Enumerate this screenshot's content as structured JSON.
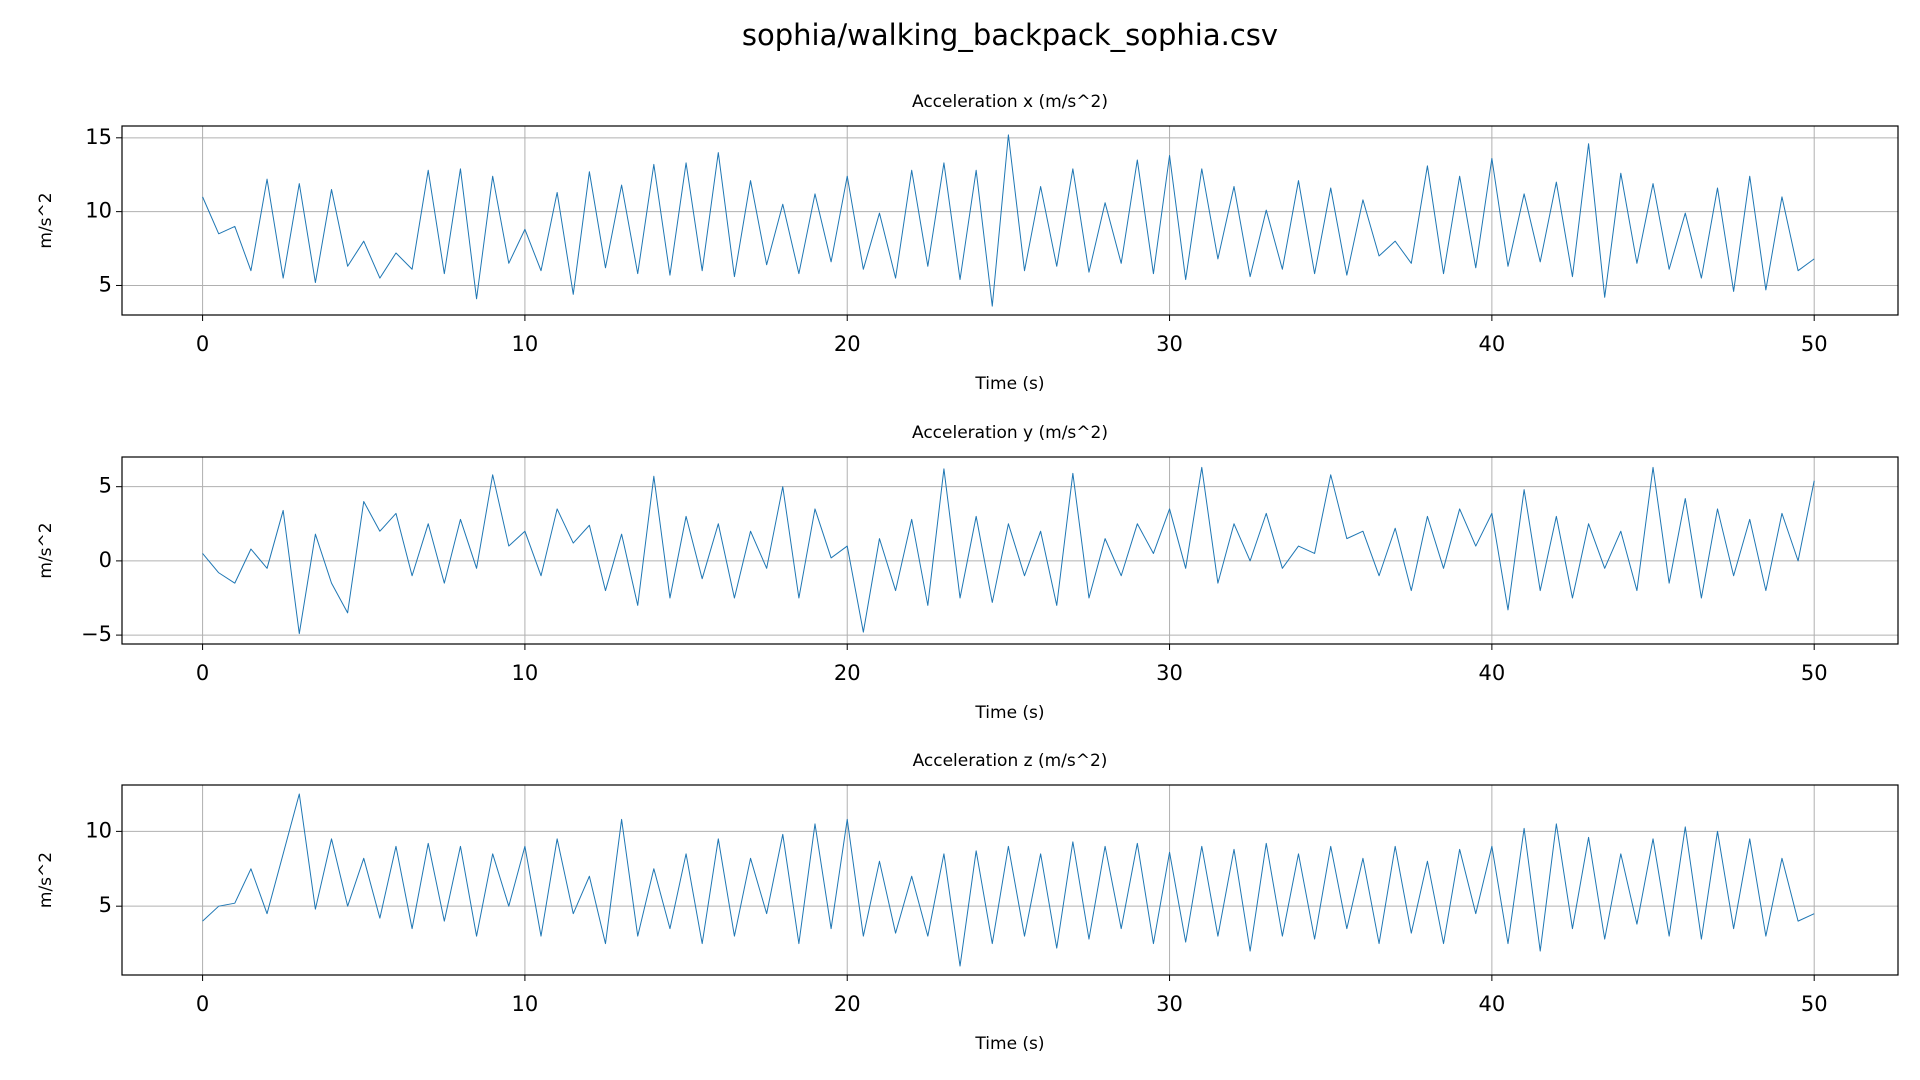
{
  "title": "sophia/walking_backpack_sophia.csv",
  "chart_data": [
    {
      "type": "line",
      "title": "Acceleration x (m/s^2)",
      "x_label": "Time (s)",
      "y_label": "m/s^2",
      "color": "#1f77b4",
      "grid": true,
      "xlim": [
        -2.5,
        52.6
      ],
      "xticks": [
        0,
        10,
        20,
        30,
        40,
        50
      ],
      "ylim": [
        3.0,
        15.8
      ],
      "yticks": [
        5,
        10,
        15
      ],
      "x": [
        0,
        0.5,
        1,
        1.5,
        2,
        2.5,
        3,
        3.5,
        4,
        4.5,
        5,
        5.5,
        6,
        6.5,
        7,
        7.5,
        8,
        8.5,
        9,
        9.5,
        10,
        10.5,
        11,
        11.5,
        12,
        12.5,
        13,
        13.5,
        14,
        14.5,
        15,
        15.5,
        16,
        16.5,
        17,
        17.5,
        18,
        18.5,
        19,
        19.5,
        20,
        20.5,
        21,
        21.5,
        22,
        22.5,
        23,
        23.5,
        24,
        24.5,
        25,
        25.5,
        26,
        26.5,
        27,
        27.5,
        28,
        28.5,
        29,
        29.5,
        30,
        30.5,
        31,
        31.5,
        32,
        32.5,
        33,
        33.5,
        34,
        34.5,
        35,
        35.5,
        36,
        36.5,
        37,
        37.5,
        38,
        38.5,
        39,
        39.5,
        40,
        40.5,
        41,
        41.5,
        42,
        42.5,
        43,
        43.5,
        44,
        44.5,
        45,
        45.5,
        46,
        46.5,
        47,
        47.5,
        48,
        48.5,
        49,
        49.5,
        50
      ],
      "values": [
        11.0,
        8.5,
        9.0,
        6.0,
        12.2,
        5.5,
        11.9,
        5.2,
        11.5,
        6.3,
        8.0,
        5.5,
        7.2,
        6.1,
        12.8,
        5.8,
        12.9,
        4.1,
        12.4,
        6.5,
        8.8,
        6.0,
        11.3,
        4.4,
        12.7,
        6.2,
        11.8,
        5.8,
        13.2,
        5.7,
        13.3,
        6.0,
        14.0,
        5.6,
        12.1,
        6.4,
        10.5,
        5.8,
        11.2,
        6.6,
        12.4,
        6.1,
        9.9,
        5.5,
        12.8,
        6.3,
        13.3,
        5.4,
        12.8,
        3.6,
        15.2,
        6.0,
        11.7,
        6.3,
        12.9,
        5.9,
        10.6,
        6.5,
        13.5,
        5.8,
        13.8,
        5.4,
        12.9,
        6.8,
        11.7,
        5.6,
        10.1,
        6.1,
        12.1,
        5.8,
        11.6,
        5.7,
        10.8,
        7.0,
        8.0,
        6.5,
        13.1,
        5.8,
        12.4,
        6.2,
        13.6,
        6.3,
        11.2,
        6.6,
        12.0,
        5.6,
        14.6,
        4.2,
        12.6,
        6.5,
        11.9,
        6.1,
        9.9,
        5.5,
        11.6,
        4.6,
        12.4,
        4.7,
        11.0,
        6.0,
        6.8
      ]
    },
    {
      "type": "line",
      "title": "Acceleration y (m/s^2)",
      "x_label": "Time (s)",
      "y_label": "m/s^2",
      "color": "#1f77b4",
      "grid": true,
      "xlim": [
        -2.5,
        52.6
      ],
      "xticks": [
        0,
        10,
        20,
        30,
        40,
        50
      ],
      "ylim": [
        -5.6,
        7.0
      ],
      "yticks": [
        {
          "value": -5,
          "label": "−5"
        },
        0,
        5
      ],
      "x": [
        0,
        0.5,
        1,
        1.5,
        2,
        2.5,
        3,
        3.5,
        4,
        4.5,
        5,
        5.5,
        6,
        6.5,
        7,
        7.5,
        8,
        8.5,
        9,
        9.5,
        10,
        10.5,
        11,
        11.5,
        12,
        12.5,
        13,
        13.5,
        14,
        14.5,
        15,
        15.5,
        16,
        16.5,
        17,
        17.5,
        18,
        18.5,
        19,
        19.5,
        20,
        20.5,
        21,
        21.5,
        22,
        22.5,
        23,
        23.5,
        24,
        24.5,
        25,
        25.5,
        26,
        26.5,
        27,
        27.5,
        28,
        28.5,
        29,
        29.5,
        30,
        30.5,
        31,
        31.5,
        32,
        32.5,
        33,
        33.5,
        34,
        34.5,
        35,
        35.5,
        36,
        36.5,
        37,
        37.5,
        38,
        38.5,
        39,
        39.5,
        40,
        40.5,
        41,
        41.5,
        42,
        42.5,
        43,
        43.5,
        44,
        44.5,
        45,
        45.5,
        46,
        46.5,
        47,
        47.5,
        48,
        48.5,
        49,
        49.5,
        50
      ],
      "values": [
        0.5,
        -0.8,
        -1.5,
        0.8,
        -0.5,
        3.4,
        -4.9,
        1.8,
        -1.5,
        -3.5,
        4.0,
        2.0,
        3.2,
        -1.0,
        2.5,
        -1.5,
        2.8,
        -0.5,
        5.8,
        1.0,
        2.0,
        -1.0,
        3.5,
        1.2,
        2.4,
        -2.0,
        1.8,
        -3.0,
        5.7,
        -2.5,
        3.0,
        -1.2,
        2.5,
        -2.5,
        2.0,
        -0.5,
        5.0,
        -2.5,
        3.5,
        0.2,
        1.0,
        -4.8,
        1.5,
        -2.0,
        2.8,
        -3.0,
        6.2,
        -2.5,
        3.0,
        -2.8,
        2.5,
        -1.0,
        2.0,
        -3.0,
        5.9,
        -2.5,
        1.5,
        -1.0,
        2.5,
        0.5,
        3.5,
        -0.5,
        6.3,
        -1.5,
        2.5,
        0.0,
        3.2,
        -0.5,
        1.0,
        0.5,
        5.8,
        1.5,
        2.0,
        -1.0,
        2.2,
        -2.0,
        3.0,
        -0.5,
        3.5,
        1.0,
        3.2,
        -3.3,
        4.8,
        -2.0,
        3.0,
        -2.5,
        2.5,
        -0.5,
        2.0,
        -2.0,
        6.3,
        -1.5,
        4.2,
        -2.5,
        3.5,
        -1.0,
        2.8,
        -2.0,
        3.2,
        0.0,
        5.4
      ]
    },
    {
      "type": "line",
      "title": "Acceleration z (m/s^2)",
      "x_label": "Time (s)",
      "y_label": "m/s^2",
      "color": "#1f77b4",
      "grid": true,
      "xlim": [
        -2.5,
        52.6
      ],
      "xticks": [
        0,
        10,
        20,
        30,
        40,
        50
      ],
      "ylim": [
        0.4,
        13.1
      ],
      "yticks": [
        5,
        10
      ],
      "x": [
        0,
        0.5,
        1,
        1.5,
        2,
        2.5,
        3,
        3.5,
        4,
        4.5,
        5,
        5.5,
        6,
        6.5,
        7,
        7.5,
        8,
        8.5,
        9,
        9.5,
        10,
        10.5,
        11,
        11.5,
        12,
        12.5,
        13,
        13.5,
        14,
        14.5,
        15,
        15.5,
        16,
        16.5,
        17,
        17.5,
        18,
        18.5,
        19,
        19.5,
        20,
        20.5,
        21,
        21.5,
        22,
        22.5,
        23,
        23.5,
        24,
        24.5,
        25,
        25.5,
        26,
        26.5,
        27,
        27.5,
        28,
        28.5,
        29,
        29.5,
        30,
        30.5,
        31,
        31.5,
        32,
        32.5,
        33,
        33.5,
        34,
        34.5,
        35,
        35.5,
        36,
        36.5,
        37,
        37.5,
        38,
        38.5,
        39,
        39.5,
        40,
        40.5,
        41,
        41.5,
        42,
        42.5,
        43,
        43.5,
        44,
        44.5,
        45,
        45.5,
        46,
        46.5,
        47,
        47.5,
        48,
        48.5,
        49,
        49.5,
        50
      ],
      "values": [
        4.0,
        5.0,
        5.2,
        7.5,
        4.5,
        8.5,
        12.5,
        4.8,
        9.5,
        5.0,
        8.2,
        4.2,
        9.0,
        3.5,
        9.2,
        4.0,
        9.0,
        3.0,
        8.5,
        5.0,
        9.0,
        3.0,
        9.5,
        4.5,
        7.0,
        2.5,
        10.8,
        3.0,
        7.5,
        3.5,
        8.5,
        2.5,
        9.5,
        3.0,
        8.2,
        4.5,
        9.8,
        2.5,
        10.5,
        3.5,
        10.8,
        3.0,
        8.0,
        3.2,
        7.0,
        3.0,
        8.5,
        1.0,
        8.7,
        2.5,
        9.0,
        3.0,
        8.5,
        2.2,
        9.3,
        2.8,
        9.0,
        3.5,
        9.2,
        2.5,
        8.6,
        2.6,
        9.0,
        3.0,
        8.8,
        2.0,
        9.2,
        3.0,
        8.5,
        2.8,
        9.0,
        3.5,
        8.2,
        2.5,
        9.0,
        3.2,
        8.0,
        2.5,
        8.8,
        4.5,
        9.0,
        2.5,
        10.2,
        2.0,
        10.5,
        3.5,
        9.6,
        2.8,
        8.5,
        3.8,
        9.5,
        3.0,
        10.3,
        2.8,
        10.0,
        3.5,
        9.5,
        3.0,
        8.2,
        4.0,
        4.5
      ]
    }
  ]
}
